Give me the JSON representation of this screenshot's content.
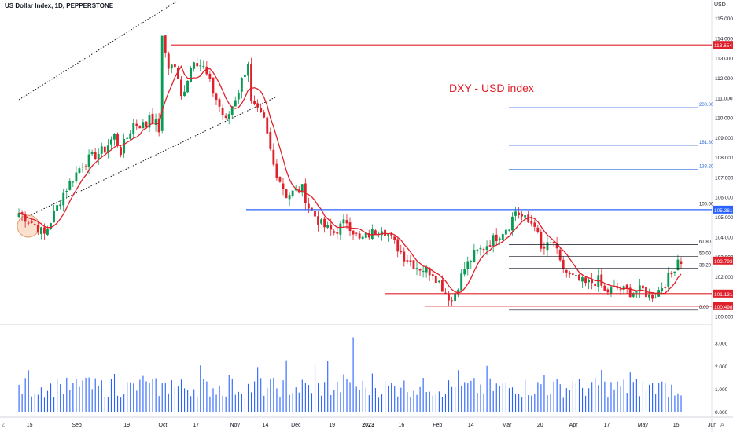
{
  "header": {
    "title": "US Dollar Index, 1D, PEPPERSTONE",
    "currency": "USD"
  },
  "annotation": "DXY - USD index",
  "corner_left": "Z",
  "corner_right": "A",
  "colors": {
    "up": "#0a9a55",
    "down": "#e0202a",
    "ma": "#e0202a",
    "resistance_line": "#e0202a",
    "support_line": "#2962ff",
    "fib_level": "#131722",
    "fib_ext": "#2a6ad8",
    "volume": "#2962ff",
    "highlight": "#f6c9a8"
  },
  "chart_data": {
    "type": "candlestick",
    "title": "US Dollar Index, 1D, PEPPERSTONE",
    "y_axis": {
      "range": [
        99.7,
        115.6
      ],
      "ticks": [
        "115.000",
        "114.000",
        "113.000",
        "112.000",
        "111.000",
        "110.000",
        "109.000",
        "108.000",
        "107.000",
        "106.000",
        "105.000",
        "104.000",
        "103.000",
        "102.000",
        "101.000",
        "100.000"
      ]
    },
    "x_axis": {
      "ticks": [
        "15",
        "Sep",
        "19",
        "Oct",
        "17",
        "Nov",
        "14",
        "Dec",
        "19",
        "2023",
        "16",
        "Feb",
        "14",
        "Mar",
        "20",
        "Apr",
        "17",
        "May",
        "15",
        "Jun"
      ]
    },
    "price_path": [
      [
        0,
        105.2
      ],
      [
        5,
        104.6
      ],
      [
        8,
        104.1
      ],
      [
        14,
        106.2
      ],
      [
        20,
        107.7
      ],
      [
        27,
        108.4
      ],
      [
        30,
        109.1
      ],
      [
        32,
        108.3
      ],
      [
        36,
        109.7
      ],
      [
        40,
        109.6
      ],
      [
        41,
        110.2
      ],
      [
        44,
        109.4
      ],
      [
        45,
        113.9
      ],
      [
        47,
        112.6
      ],
      [
        49,
        112.6
      ],
      [
        51,
        111.0
      ],
      [
        55,
        113.0
      ],
      [
        58,
        112.5
      ],
      [
        61,
        111.3
      ],
      [
        65,
        109.8
      ],
      [
        69,
        111.4
      ],
      [
        72,
        112.8
      ],
      [
        73,
        110.7
      ],
      [
        77,
        109.8
      ],
      [
        80,
        107.6
      ],
      [
        84,
        106.1
      ],
      [
        89,
        106.4
      ],
      [
        91,
        105.5
      ],
      [
        95,
        104.6
      ],
      [
        99,
        104.2
      ],
      [
        103,
        104.8
      ],
      [
        107,
        103.8
      ],
      [
        111,
        104.2
      ],
      [
        114,
        104.5
      ],
      [
        116,
        104.1
      ],
      [
        121,
        103.0
      ],
      [
        125,
        102.5
      ],
      [
        130,
        102.2
      ],
      [
        134,
        101.2
      ],
      [
        136,
        100.8
      ],
      [
        140,
        102.4
      ],
      [
        143,
        103.1
      ],
      [
        147,
        103.6
      ],
      [
        150,
        104.0
      ],
      [
        154,
        104.6
      ],
      [
        156,
        105.3
      ],
      [
        160,
        104.7
      ],
      [
        162,
        104.7
      ],
      [
        164,
        103.3
      ],
      [
        168,
        103.7
      ],
      [
        170,
        102.6
      ],
      [
        173,
        102.0
      ],
      [
        178,
        101.6
      ],
      [
        182,
        101.8
      ],
      [
        184,
        101.2
      ],
      [
        188,
        101.4
      ],
      [
        192,
        101.2
      ],
      [
        196,
        101.3
      ],
      [
        198,
        101.0
      ],
      [
        200,
        101.1
      ],
      [
        202,
        101.5
      ],
      [
        205,
        102.1
      ],
      [
        207,
        102.9
      ],
      [
        208,
        102.8
      ]
    ],
    "volume_axis": {
      "ticks": [
        "3.000",
        "2.000",
        "1.000",
        "0.000"
      ]
    },
    "levels": [
      {
        "label": "113.654",
        "value": 113.654,
        "kind": "resistance"
      },
      {
        "label": "105.361",
        "value": 105.361,
        "kind": "support"
      },
      {
        "label": "101.131",
        "value": 101.131,
        "kind": "resistance"
      },
      {
        "label": "100.498",
        "value": 100.498,
        "kind": "resistance"
      }
    ],
    "last_price": {
      "label": "102.793",
      "value": 102.793
    },
    "fib_levels": [
      {
        "label": "100.00",
        "value": 105.5
      },
      {
        "label": "61.80",
        "value": 103.6
      },
      {
        "label": "50.00",
        "value": 103.0
      },
      {
        "label": "38.20",
        "value": 102.4
      },
      {
        "label": "0.00",
        "value": 100.3
      }
    ],
    "fib_extensions": [
      {
        "label": "138.20",
        "value": 107.4
      },
      {
        "label": "161.80",
        "value": 108.6
      },
      {
        "label": "200.00",
        "value": 110.5
      }
    ]
  }
}
